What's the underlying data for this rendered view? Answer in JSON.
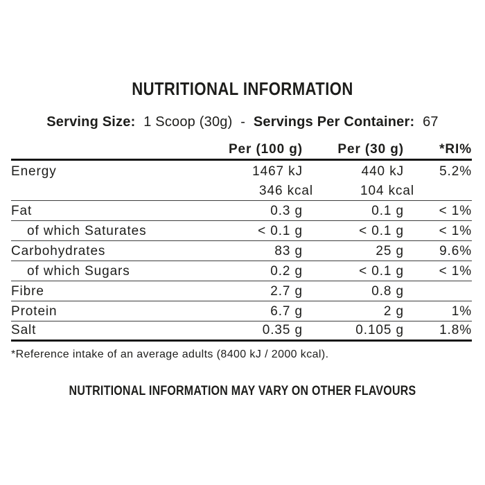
{
  "title": "NUTRITIONAL INFORMATION",
  "serving": {
    "size_label": "Serving Size:",
    "size_value": "1 Scoop (30g)",
    "separator": "-",
    "container_label": "Servings Per Container:",
    "container_value": "67"
  },
  "table": {
    "columns": [
      "",
      "Per (100 g)",
      "Per (30 g)",
      "*RI%"
    ],
    "rows": [
      {
        "label": "Energy",
        "per100": "1467 kJ",
        "per30": "440 kJ",
        "ri": "5.2%"
      },
      {
        "label": "",
        "per100": "346 kcal",
        "per30": "104 kcal",
        "ri": ""
      },
      {
        "label": "Fat",
        "per100": "0.3 g",
        "per30": "0.1 g",
        "ri": "< 1%"
      },
      {
        "label": "of which Saturates",
        "per100": "< 0.1 g",
        "per30": "< 0.1 g",
        "ri": "< 1%"
      },
      {
        "label": "Carbohydrates",
        "per100": "83 g",
        "per30": "25 g",
        "ri": "9.6%"
      },
      {
        "label": "of which Sugars",
        "per100": "0.2 g",
        "per30": "< 0.1 g",
        "ri": "< 1%"
      },
      {
        "label": "Fibre",
        "per100": "2.7 g",
        "per30": "0.8 g",
        "ri": ""
      },
      {
        "label": "Protein",
        "per100": "6.7 g",
        "per30": "2 g",
        "ri": "1%"
      },
      {
        "label": "Salt",
        "per100": "0.35 g",
        "per30": "0.105 g",
        "ri": "1.8%"
      }
    ]
  },
  "footnote": "*Reference intake of an average adults (8400 kJ / 2000 kcal).",
  "disclaimer": "NUTRITIONAL INFORMATION MAY VARY ON OTHER FLAVOURS",
  "colors": {
    "text": "#1d1d1b",
    "rule_thin": "#3c3c3c",
    "rule_thick": "#161616",
    "background": "#ffffff"
  }
}
